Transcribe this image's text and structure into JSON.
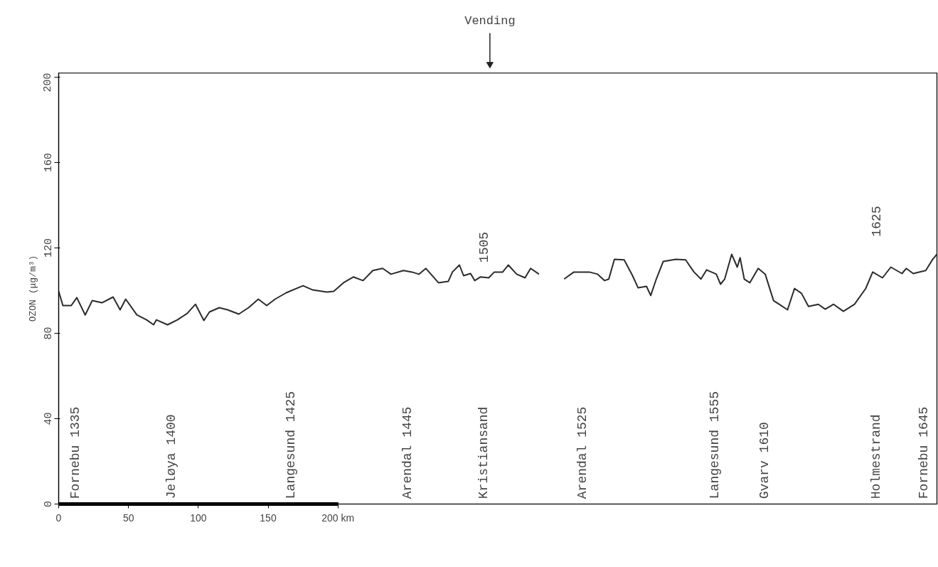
{
  "chart_data": {
    "type": "line",
    "ylabel": "OZON (μg/m³)",
    "x": [
      0,
      3,
      9,
      13,
      19,
      24,
      31,
      39,
      44,
      48,
      56,
      63,
      68,
      70,
      78,
      85,
      92,
      98,
      104,
      108,
      115,
      121,
      129,
      136,
      143,
      149,
      155,
      163,
      175,
      182,
      192,
      197,
      204,
      211,
      218,
      225,
      232,
      238,
      247,
      253,
      258,
      263,
      272,
      279,
      282,
      287,
      290,
      295,
      298,
      302,
      308,
      312,
      318,
      322,
      328,
      334,
      338,
      344,
      353,
      362,
      369,
      380,
      386,
      391,
      394,
      398,
      405,
      411,
      415,
      421,
      424,
      428,
      433,
      442,
      449,
      455,
      460,
      464,
      471,
      474,
      477,
      482,
      486,
      488,
      491,
      495,
      501,
      506,
      512,
      516,
      522,
      527,
      532,
      537,
      544,
      549,
      555,
      562,
      570,
      578,
      583,
      590,
      596,
      604,
      607,
      612,
      621,
      626,
      629
    ],
    "series": [
      {
        "color": "#2b2b2b",
        "values": [
          99.7,
          93,
          93,
          96.7,
          88.6,
          95.3,
          94.3,
          97,
          91,
          96,
          88.6,
          86.3,
          84,
          86.3,
          84,
          86.3,
          89.3,
          93.6,
          86,
          90,
          92,
          91,
          89,
          92,
          96,
          93,
          96,
          99,
          102.3,
          100.3,
          99.3,
          99.7,
          103.7,
          106.4,
          104.7,
          109.4,
          110.4,
          107.7,
          109.4,
          108.7,
          107.7,
          110.4,
          103.7,
          104.3,
          108.7,
          112,
          107,
          108,
          104.7,
          106.4,
          106,
          108.7,
          108.7,
          112,
          107.7,
          106,
          110.4,
          107.7,
          null,
          105.4,
          108.7,
          108.7,
          107.7,
          104.7,
          105.4,
          114.7,
          114.4,
          107,
          101.3,
          102,
          97.7,
          105.4,
          113.7,
          114.7,
          114.4,
          108.7,
          105.4,
          109.7,
          107.7,
          103,
          105.4,
          117,
          111,
          115.4,
          105.4,
          103.7,
          110.4,
          107.7,
          95.3,
          93.6,
          91,
          101,
          98.7,
          92.6,
          93.6,
          91.3,
          93.6,
          90.3,
          93.6,
          101,
          108.7,
          106,
          111,
          108,
          110.4,
          108,
          109.4,
          114.7,
          117
        ]
      }
    ],
    "xlim": [
      0,
      629
    ],
    "ylim": [
      0,
      202
    ],
    "xticks": [
      0,
      50,
      100,
      150,
      {
        "value": 200,
        "label": "200 km"
      }
    ],
    "yticks": [
      0,
      40,
      80,
      120,
      160,
      200
    ],
    "grid": false,
    "marker": "none",
    "line_style": "solid",
    "annotations": [
      "Vending",
      "Fornebu 1335",
      "Jeløya 1400",
      "Langesund 1425",
      "Arendal 1445",
      "Kristiansand",
      "1505",
      "Arendal 1525",
      "Langesund 1555",
      "Gvarv 1610",
      "Holmestrand",
      "1625",
      "Fornebu 1645"
    ]
  }
}
